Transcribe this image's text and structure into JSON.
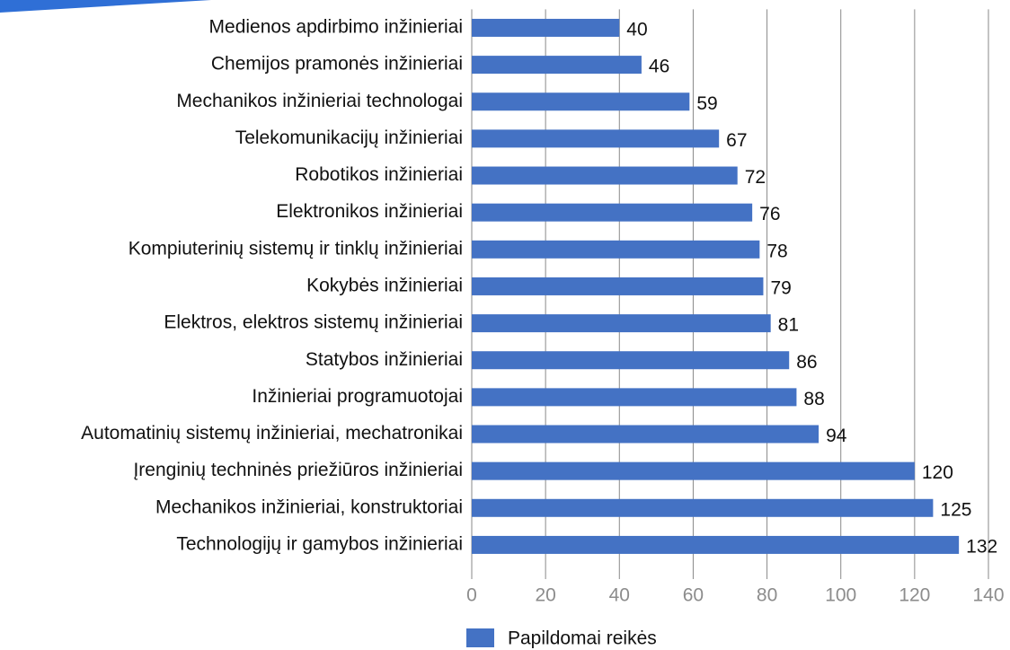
{
  "chart_data": {
    "type": "bar",
    "orientation": "horizontal",
    "categories": [
      "Medienos apdirbimo inžinieriai",
      "Chemijos pramonės inžinieriai",
      "Mechanikos inžinieriai technologai",
      "Telekomunikacijų inžinieriai",
      "Robotikos inžinieriai",
      "Elektronikos inžinieriai",
      "Kompiuterinių sistemų ir tinklų inžinieriai",
      "Kokybės inžinieriai",
      "Elektros, elektros sistemų inžinieriai",
      "Statybos inžinieriai",
      "Inžinieriai programuotojai",
      "Automatinių sistemų inžinieriai, mechatronikai",
      "Įrenginių techninės priežiūros inžinieriai",
      "Mechanikos inžinieriai, konstruktoriai",
      "Technologijų ir gamybos inžinieriai"
    ],
    "series": [
      {
        "name": "Papildomai reikės",
        "color": "#4472c4",
        "values": [
          40,
          46,
          59,
          67,
          72,
          76,
          78,
          79,
          81,
          86,
          88,
          94,
          120,
          125,
          132
        ]
      }
    ],
    "xlim": [
      0,
      140
    ],
    "xticks": [
      0,
      20,
      40,
      60,
      80,
      100,
      120,
      140
    ],
    "grid": true,
    "legend": "bottom"
  }
}
